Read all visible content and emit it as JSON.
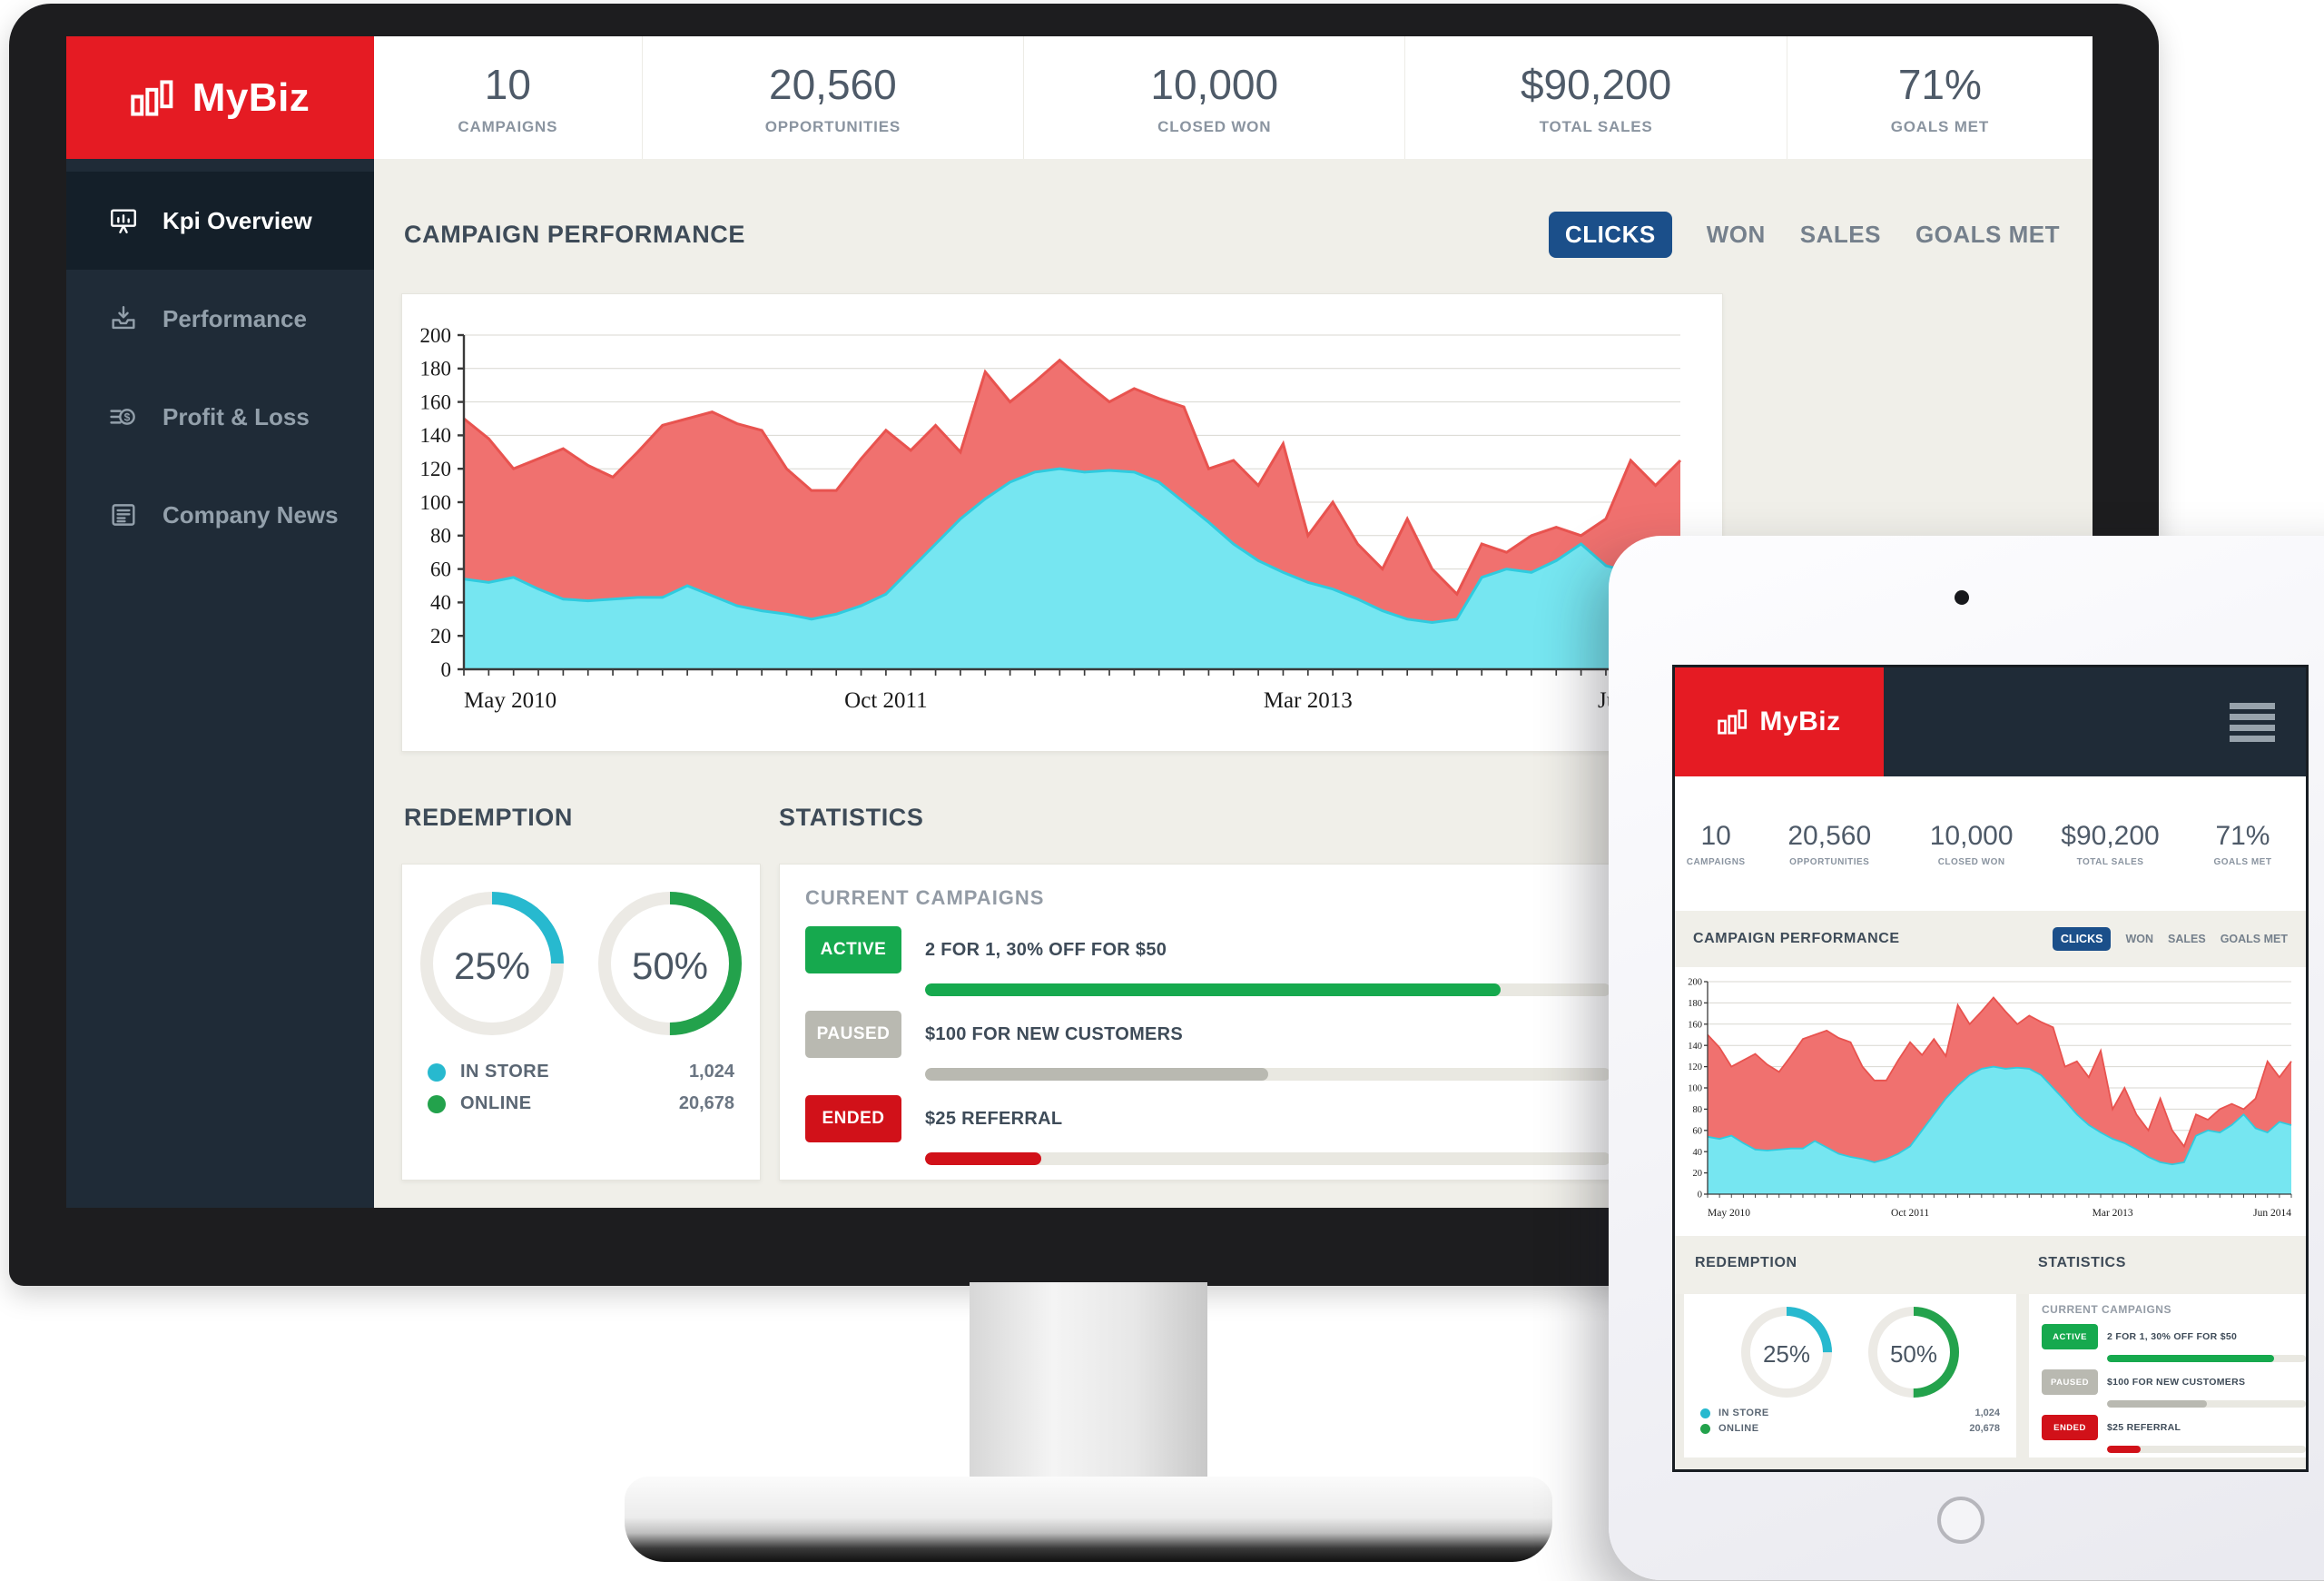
{
  "colors": {
    "brand_red": "#e51b23",
    "sidebar_navy": "#1f2b37",
    "sidebar_active": "#141f29",
    "accent_blue": "#1b4f8a",
    "bg_beige": "#f0efe9",
    "text_dark": "#3e4b58",
    "chart_red": "#f0716f",
    "chart_cyan": "#76e6f1",
    "donut_teal": "#27b9cf",
    "donut_green": "#23a24c",
    "progress_green": "#16a94e",
    "progress_grey": "#b9b9b1",
    "progress_red": "#d11119"
  },
  "brand": {
    "name": "MyBiz"
  },
  "kpis": [
    {
      "value": "10",
      "label": "CAMPAIGNS"
    },
    {
      "value": "20,560",
      "label": "OPPORTUNITIES"
    },
    {
      "value": "10,000",
      "label": "CLOSED WON"
    },
    {
      "value": "$90,200",
      "label": "TOTAL SALES"
    },
    {
      "value": "71%",
      "label": "GOALS MET"
    }
  ],
  "sidebar": {
    "items": [
      {
        "label": "Kpi Overview",
        "icon": "presentation-chart-icon",
        "active": true
      },
      {
        "label": "Performance",
        "icon": "inbox-download-icon",
        "active": false
      },
      {
        "label": "Profit & Loss",
        "icon": "coin-icon",
        "active": false
      },
      {
        "label": "Company News",
        "icon": "newspaper-icon",
        "active": false
      }
    ]
  },
  "campaign_performance": {
    "title": "CAMPAIGN PERFORMANCE",
    "tabs": [
      {
        "label": "CLICKS",
        "active": true
      },
      {
        "label": "WON",
        "active": false
      },
      {
        "label": "SALES",
        "active": false
      },
      {
        "label": "GOALS MET",
        "active": false
      }
    ]
  },
  "chart_data": {
    "type": "area",
    "title": "CAMPAIGN PERFORMANCE",
    "metric": "CLICKS",
    "ylim": [
      0,
      200
    ],
    "y_tick_step": 20,
    "grid": true,
    "n_points": 50,
    "x_tick_indices": [
      0,
      17,
      34,
      49
    ],
    "x_tick_labels": [
      "May 2010",
      "Oct 2011",
      "Mar 2013",
      "Jun 2014"
    ],
    "series": [
      {
        "name": "total-clicks",
        "color": "#f0716f",
        "stroke": "#e8534f",
        "values": [
          150,
          138,
          120,
          126,
          132,
          122,
          115,
          130,
          146,
          150,
          154,
          147,
          143,
          120,
          107,
          107,
          126,
          143,
          131,
          146,
          130,
          178,
          160,
          172,
          185,
          172,
          160,
          168,
          162,
          157,
          120,
          125,
          110,
          135,
          80,
          100,
          75,
          60,
          90,
          60,
          45,
          75,
          70,
          80,
          85,
          80,
          90,
          125,
          110,
          125
        ]
      },
      {
        "name": "in-store-clicks",
        "color": "#76e6f1",
        "stroke": "#2fcbdf",
        "values": [
          54,
          52,
          55,
          48,
          42,
          41,
          42,
          43,
          43,
          50,
          44,
          38,
          35,
          33,
          30,
          33,
          38,
          45,
          60,
          75,
          90,
          102,
          112,
          118,
          120,
          118,
          119,
          118,
          112,
          100,
          88,
          75,
          65,
          58,
          52,
          48,
          42,
          35,
          30,
          28,
          30,
          55,
          60,
          58,
          65,
          75,
          62,
          58,
          68,
          65
        ]
      }
    ]
  },
  "redemption": {
    "title": "REDEMPTION",
    "donuts": [
      {
        "text": "25%",
        "percent": 25,
        "color": "#27b9cf"
      },
      {
        "text": "50%",
        "percent": 50,
        "color": "#23a24c"
      }
    ],
    "legend": [
      {
        "label": "IN STORE",
        "value": "1,024",
        "color": "#27b9cf"
      },
      {
        "label": "ONLINE",
        "value": "20,678",
        "color": "#23a24c"
      }
    ]
  },
  "statistics": {
    "title": "STATISTICS",
    "subtitle": "CURRENT CAMPAIGNS",
    "campaigns": [
      {
        "status": "ACTIVE",
        "label": "2 FOR 1, 30% OFF FOR $50",
        "progress": 84,
        "color": "#16a94e"
      },
      {
        "status": "PAUSED",
        "label": "$100 FOR NEW CUSTOMERS",
        "progress": 50,
        "color": "#b9b9b1"
      },
      {
        "status": "ENDED",
        "label": "$25 REFERRAL",
        "progress": 17,
        "color": "#d11119"
      }
    ]
  }
}
